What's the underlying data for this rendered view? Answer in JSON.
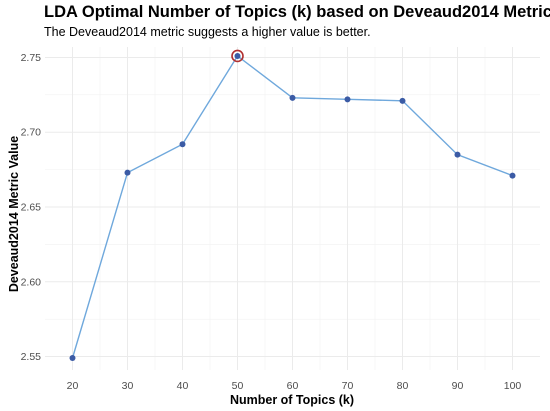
{
  "chart_data": {
    "type": "line",
    "title": "LDA Optimal Number of Topics (k) based on Deveaud2014 Metric",
    "subtitle": "The Deveaud2014 metric suggests a higher value is better.",
    "xlabel": "Number of Topics (k)",
    "ylabel": "Deveaud2014 Metric Value",
    "x": [
      20,
      30,
      40,
      50,
      60,
      70,
      80,
      90,
      100
    ],
    "y": [
      2.549,
      2.673,
      2.692,
      2.751,
      2.723,
      2.722,
      2.721,
      2.685,
      2.671
    ],
    "x_ticks": [
      "20",
      "30",
      "40",
      "50",
      "60",
      "70",
      "80",
      "90",
      "100"
    ],
    "y_ticks": [
      "2.55",
      "2.60",
      "2.65",
      "2.70",
      "2.75"
    ],
    "xlim": [
      15,
      105
    ],
    "ylim": [
      2.541,
      2.757
    ],
    "highlight_x": 50,
    "grid": true,
    "colors": {
      "line": "#6fa8dc",
      "point": "#3b5ba5",
      "highlight": "#b03030"
    }
  }
}
